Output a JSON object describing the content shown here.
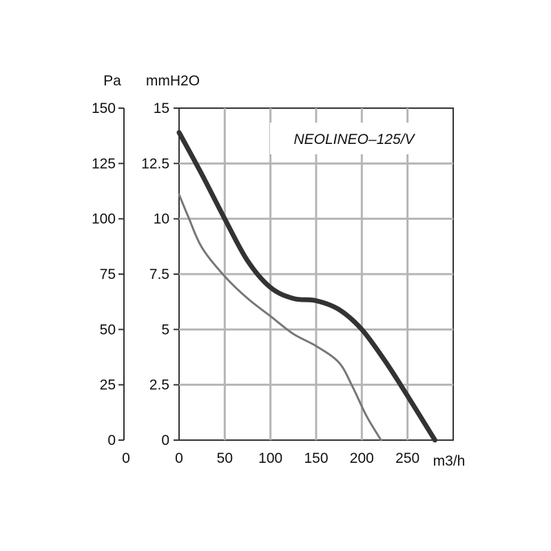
{
  "chart_data": {
    "type": "line",
    "title": "",
    "xlabel": "m3/h",
    "ylabel_left": "Pa",
    "ylabel_right": "mmH2O",
    "legend_label": "NEOLINEO–125/V",
    "xlim": [
      0,
      300
    ],
    "ylim_mmh2o": [
      0,
      15
    ],
    "ylim_pa": [
      0,
      150
    ],
    "grid": true,
    "x_ticks": [
      "0",
      "50",
      "100",
      "150",
      "200",
      "250"
    ],
    "y_ticks_mmh2o": [
      "0",
      "2.5",
      "5",
      "7.5",
      "10",
      "12.5",
      "15"
    ],
    "y_ticks_pa": [
      "0",
      "25",
      "50",
      "75",
      "100",
      "125",
      "150"
    ],
    "pa_axis_origin_label": "0",
    "series": [
      {
        "style": "thick",
        "color": "#333333",
        "x": [
          0,
          25,
          50,
          75,
          100,
          125,
          150,
          175,
          200,
          225,
          250,
          280
        ],
        "y": [
          13.9,
          12.0,
          10.0,
          8.1,
          6.9,
          6.4,
          6.3,
          5.9,
          5.0,
          3.6,
          2.0,
          0
        ]
      },
      {
        "style": "thin",
        "color": "#777777",
        "x": [
          0,
          10,
          25,
          50,
          75,
          100,
          125,
          150,
          175,
          190,
          205,
          221
        ],
        "y": [
          11.1,
          10.1,
          8.7,
          7.4,
          6.4,
          5.6,
          4.8,
          4.25,
          3.5,
          2.4,
          1.1,
          0
        ]
      }
    ]
  }
}
